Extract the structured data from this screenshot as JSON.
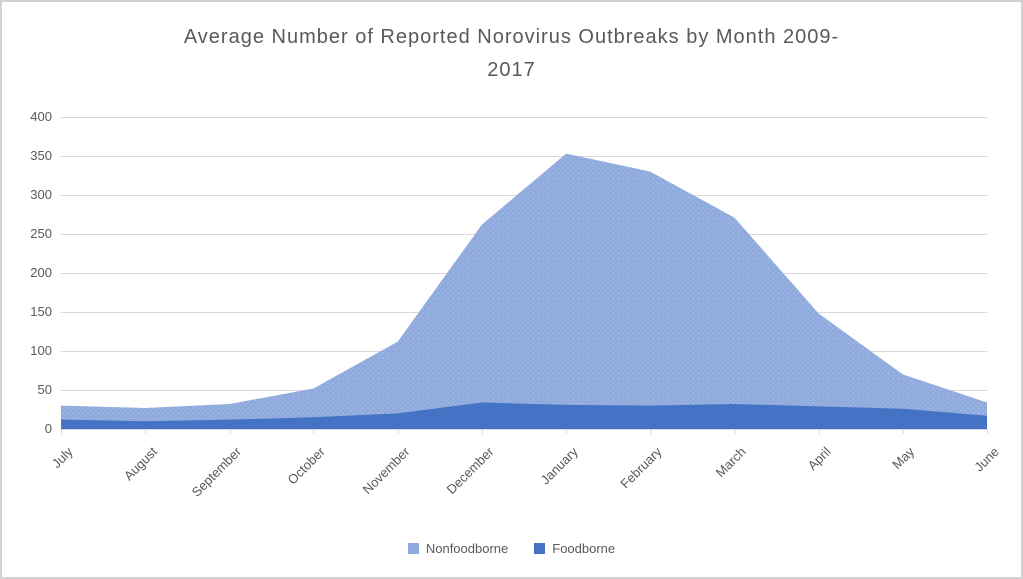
{
  "window": {
    "background": "#FFFFFF",
    "border_color": "#D2D2D2"
  },
  "titles": {
    "line1": "Average Number of Reported Norovirus Outbreaks by Month 2009-",
    "line2": "2017"
  },
  "chart_data": {
    "type": "area",
    "title": "Average Number of Reported Norovirus Outbreaks by Month 2009-2017",
    "categories": [
      "July",
      "August",
      "September",
      "October",
      "November",
      "December",
      "January",
      "February",
      "March",
      "April",
      "May",
      "June"
    ],
    "series": [
      {
        "name": "Nonfoodborne",
        "color": "#8FAADC",
        "values": [
          30,
          27,
          32,
          52,
          112,
          262,
          353,
          330,
          271,
          148,
          70,
          34
        ]
      },
      {
        "name": "Foodborne",
        "color": "#4472C4",
        "values": [
          12,
          10,
          12,
          15,
          20,
          34,
          31,
          30,
          32,
          29,
          26,
          17
        ]
      }
    ],
    "xlabel": "",
    "ylabel": "",
    "ylim": [
      0,
      400
    ],
    "yticks": [
      0,
      50,
      100,
      150,
      200,
      250,
      300,
      350,
      400
    ],
    "grid": true,
    "overlapping_series": true,
    "legend_position": "bottom",
    "text_color": "#595959",
    "gridline_color": "#D9D9D9",
    "axis_color": "#D9D9D9"
  }
}
